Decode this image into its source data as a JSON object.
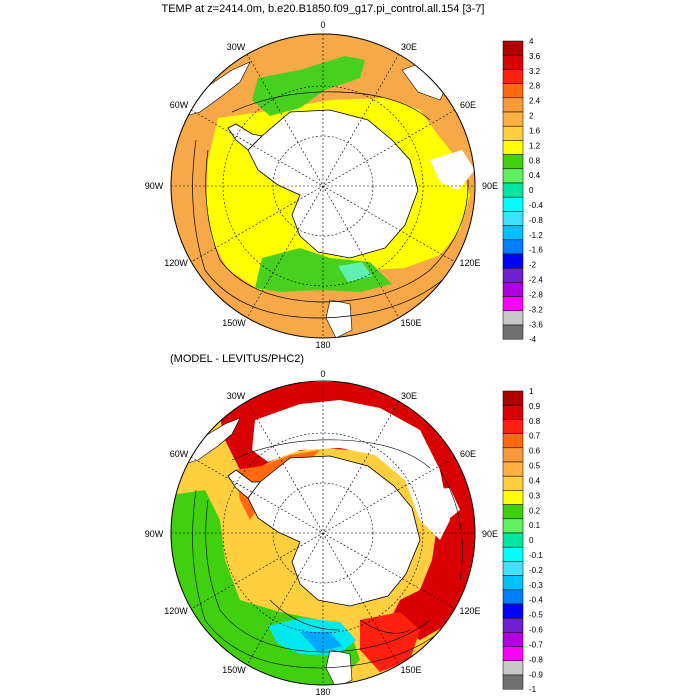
{
  "top_panel": {
    "title": "TEMP at z=2414.0m, b.e20.B1850.f09_g17.pi_control.all.154 [3-7]",
    "longitude_labels": [
      "0",
      "30E",
      "60E",
      "90E",
      "120E",
      "150E",
      "180",
      "150W",
      "120W",
      "90W",
      "60W",
      "30W"
    ],
    "colorbar_labels": [
      "4",
      "3.6",
      "3.2",
      "2.8",
      "2.4",
      "2",
      "1.6",
      "1.2",
      "0.8",
      "0.4",
      "0",
      "-0.4",
      "-0.8",
      "-1.2",
      "-1.6",
      "-2",
      "-2.4",
      "-2.8",
      "-3.2",
      "-3.6",
      "-4"
    ]
  },
  "bottom_panel": {
    "title": "(MODEL - LEVITUS/PHC2)",
    "longitude_labels": [
      "0",
      "30E",
      "60E",
      "90E",
      "120E",
      "150E",
      "180",
      "150W",
      "120W",
      "90W",
      "60W",
      "30W"
    ],
    "colorbar_labels": [
      "1",
      "0.9",
      "0.8",
      "0.7",
      "0.6",
      "0.5",
      "0.4",
      "0.3",
      "0.2",
      "0.1",
      "0",
      "-0.1",
      "-0.2",
      "-0.3",
      "-0.4",
      "-0.5",
      "-0.6",
      "-0.7",
      "-0.8",
      "-0.9",
      "-1"
    ]
  },
  "colorbar_colors": [
    "#b00000",
    "#d80000",
    "#ff2010",
    "#ff6a10",
    "#f79a3c",
    "#ffb040",
    "#ffcf40",
    "#ffff00",
    "#40d010",
    "#60f060",
    "#00e8a0",
    "#00ffff",
    "#40e0ff",
    "#00c0ff",
    "#0080ff",
    "#0000ff",
    "#7020d0",
    "#b000e0",
    "#ff00ff",
    "#c8c8c8",
    "#707070"
  ]
}
